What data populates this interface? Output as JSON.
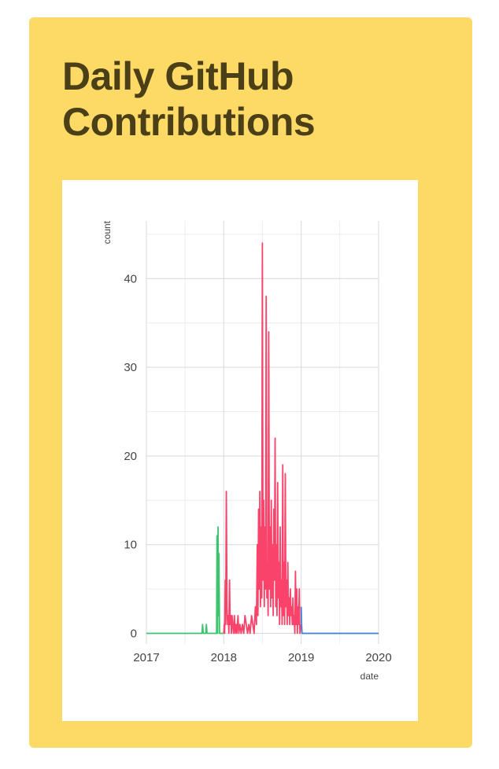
{
  "card": {
    "title": "Daily GitHub Contributions",
    "background_color": "#FDD965",
    "title_color": "#4A3F17",
    "panel_color": "#FFFFFF"
  },
  "chart_data": {
    "type": "line",
    "title": "",
    "xlabel": "date",
    "ylabel": "count",
    "x_ticks": [
      "2017",
      "2018",
      "2019",
      "2020"
    ],
    "y_ticks": [
      0,
      10,
      20,
      30,
      40
    ],
    "xlim": [
      "2017-01-01",
      "2020-01-01"
    ],
    "ylim": [
      -1.2,
      46.5
    ],
    "grid": true,
    "legend": "none",
    "series": [
      {
        "color": "#3DC46E",
        "points": [
          [
            "2017-01-01",
            0
          ],
          [
            "2017-09-20",
            0
          ],
          [
            "2017-09-23",
            1
          ],
          [
            "2017-09-26",
            0
          ],
          [
            "2017-10-08",
            0
          ],
          [
            "2017-10-11",
            1
          ],
          [
            "2017-10-14",
            0
          ],
          [
            "2017-11-28",
            0
          ],
          [
            "2017-11-30",
            11
          ],
          [
            "2017-12-03",
            0
          ],
          [
            "2017-12-05",
            12
          ],
          [
            "2017-12-07",
            2
          ],
          [
            "2017-12-09",
            9
          ],
          [
            "2017-12-12",
            0
          ],
          [
            "2017-12-31",
            0
          ]
        ]
      },
      {
        "color": "#F9436A",
        "points": [
          [
            "2018-01-01",
            0
          ],
          [
            "2018-01-03",
            1
          ],
          [
            "2018-01-05",
            0
          ],
          [
            "2018-01-08",
            6
          ],
          [
            "2018-01-10",
            1
          ],
          [
            "2018-01-13",
            16
          ],
          [
            "2018-01-16",
            3
          ],
          [
            "2018-01-19",
            1
          ],
          [
            "2018-01-22",
            2
          ],
          [
            "2018-01-25",
            0
          ],
          [
            "2018-01-28",
            6
          ],
          [
            "2018-01-31",
            1
          ],
          [
            "2018-02-03",
            2
          ],
          [
            "2018-02-06",
            0
          ],
          [
            "2018-02-09",
            2
          ],
          [
            "2018-02-12",
            1
          ],
          [
            "2018-02-16",
            0
          ],
          [
            "2018-02-20",
            2
          ],
          [
            "2018-02-24",
            0
          ],
          [
            "2018-02-28",
            1
          ],
          [
            "2018-03-04",
            0
          ],
          [
            "2018-03-09",
            2
          ],
          [
            "2018-03-13",
            0
          ],
          [
            "2018-03-18",
            1
          ],
          [
            "2018-03-24",
            0
          ],
          [
            "2018-03-30",
            1
          ],
          [
            "2018-04-05",
            0
          ],
          [
            "2018-04-11",
            2
          ],
          [
            "2018-04-17",
            1
          ],
          [
            "2018-04-23",
            0
          ],
          [
            "2018-04-29",
            1
          ],
          [
            "2018-05-05",
            0
          ],
          [
            "2018-05-12",
            2
          ],
          [
            "2018-05-18",
            1
          ],
          [
            "2018-05-24",
            0
          ],
          [
            "2018-05-30",
            3
          ],
          [
            "2018-06-04",
            1
          ],
          [
            "2018-06-08",
            10
          ],
          [
            "2018-06-11",
            2
          ],
          [
            "2018-06-14",
            14
          ],
          [
            "2018-06-17",
            5
          ],
          [
            "2018-06-20",
            16
          ],
          [
            "2018-06-23",
            3
          ],
          [
            "2018-06-26",
            12
          ],
          [
            "2018-06-29",
            4
          ],
          [
            "2018-07-02",
            44
          ],
          [
            "2018-07-05",
            6
          ],
          [
            "2018-07-08",
            15
          ],
          [
            "2018-07-11",
            3
          ],
          [
            "2018-07-14",
            12
          ],
          [
            "2018-07-17",
            5
          ],
          [
            "2018-07-20",
            38
          ],
          [
            "2018-07-23",
            4
          ],
          [
            "2018-07-26",
            8
          ],
          [
            "2018-07-29",
            2
          ],
          [
            "2018-08-01",
            34
          ],
          [
            "2018-08-04",
            5
          ],
          [
            "2018-08-07",
            12
          ],
          [
            "2018-08-10",
            3
          ],
          [
            "2018-08-13",
            15
          ],
          [
            "2018-08-16",
            4
          ],
          [
            "2018-08-19",
            10
          ],
          [
            "2018-08-22",
            2
          ],
          [
            "2018-08-25",
            14
          ],
          [
            "2018-08-28",
            6
          ],
          [
            "2018-08-31",
            22
          ],
          [
            "2018-09-03",
            3
          ],
          [
            "2018-09-06",
            10
          ],
          [
            "2018-09-09",
            2
          ],
          [
            "2018-09-12",
            17
          ],
          [
            "2018-09-15",
            4
          ],
          [
            "2018-09-18",
            8
          ],
          [
            "2018-09-21",
            1
          ],
          [
            "2018-09-24",
            12
          ],
          [
            "2018-09-27",
            3
          ],
          [
            "2018-09-30",
            6
          ],
          [
            "2018-10-03",
            1
          ],
          [
            "2018-10-06",
            19
          ],
          [
            "2018-10-09",
            2
          ],
          [
            "2018-10-12",
            8
          ],
          [
            "2018-10-15",
            1
          ],
          [
            "2018-10-18",
            18
          ],
          [
            "2018-10-21",
            3
          ],
          [
            "2018-10-24",
            6
          ],
          [
            "2018-10-27",
            1
          ],
          [
            "2018-10-30",
            8
          ],
          [
            "2018-11-02",
            2
          ],
          [
            "2018-11-05",
            4
          ],
          [
            "2018-11-08",
            1
          ],
          [
            "2018-11-11",
            5
          ],
          [
            "2018-11-14",
            2
          ],
          [
            "2018-11-17",
            3
          ],
          [
            "2018-11-20",
            1
          ],
          [
            "2018-11-23",
            4
          ],
          [
            "2018-11-26",
            1
          ],
          [
            "2018-11-29",
            2
          ],
          [
            "2018-12-02",
            0
          ],
          [
            "2018-12-05",
            7
          ],
          [
            "2018-12-08",
            1
          ],
          [
            "2018-12-11",
            5
          ],
          [
            "2018-12-14",
            0
          ],
          [
            "2018-12-17",
            3
          ],
          [
            "2018-12-20",
            1
          ],
          [
            "2018-12-23",
            5
          ],
          [
            "2018-12-26",
            0
          ],
          [
            "2018-12-31",
            1
          ]
        ]
      },
      {
        "color": "#3F7FD8",
        "points": [
          [
            "2019-01-01",
            3
          ],
          [
            "2019-01-03",
            1
          ],
          [
            "2019-01-05",
            0
          ],
          [
            "2020-01-01",
            0
          ]
        ]
      }
    ]
  }
}
